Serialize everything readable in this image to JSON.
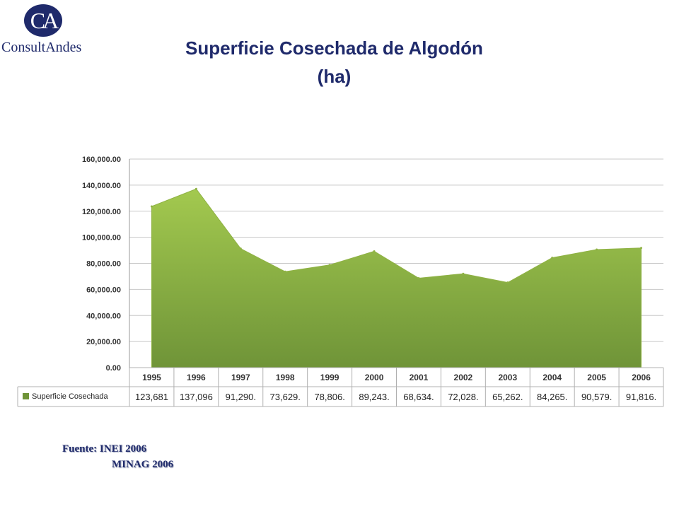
{
  "logo": {
    "letters": "CA",
    "name": "ConsultAndes"
  },
  "title": {
    "line1": "Superficie Cosechada de Algodón",
    "line2": "(ha)"
  },
  "source": {
    "line1": "Fuente: INEI 2006",
    "line2": "MINAG 2006"
  },
  "colors": {
    "area_top": "#a3c94f",
    "area_bottom": "#6f9438",
    "title": "#1f2a6b",
    "grid": "#c8c8c8"
  },
  "chart_data": {
    "type": "area",
    "categories": [
      "1995",
      "1996",
      "1997",
      "1998",
      "1999",
      "2000",
      "2001",
      "2002",
      "2003",
      "2004",
      "2005",
      "2006"
    ],
    "series": [
      {
        "name": "Superficie Cosechada",
        "values": [
          123681,
          137096,
          91290,
          73629,
          78806,
          89243,
          68634,
          72028,
          65262,
          84265,
          90579,
          91816
        ],
        "table_labels": [
          "123,681",
          "137,096",
          "91,290.",
          "73,629.",
          "78,806.",
          "89,243.",
          "68,634.",
          "72,028.",
          "65,262.",
          "84,265.",
          "90,579.",
          "91,816."
        ]
      }
    ],
    "y_ticks": [
      "0.00",
      "20,000.00",
      "40,000.00",
      "60,000.00",
      "80,000.00",
      "100,000.00",
      "120,000.00",
      "140,000.00",
      "160,000.00"
    ],
    "ylim": [
      0,
      160000
    ],
    "grid": true,
    "legend": "data-table-left"
  }
}
